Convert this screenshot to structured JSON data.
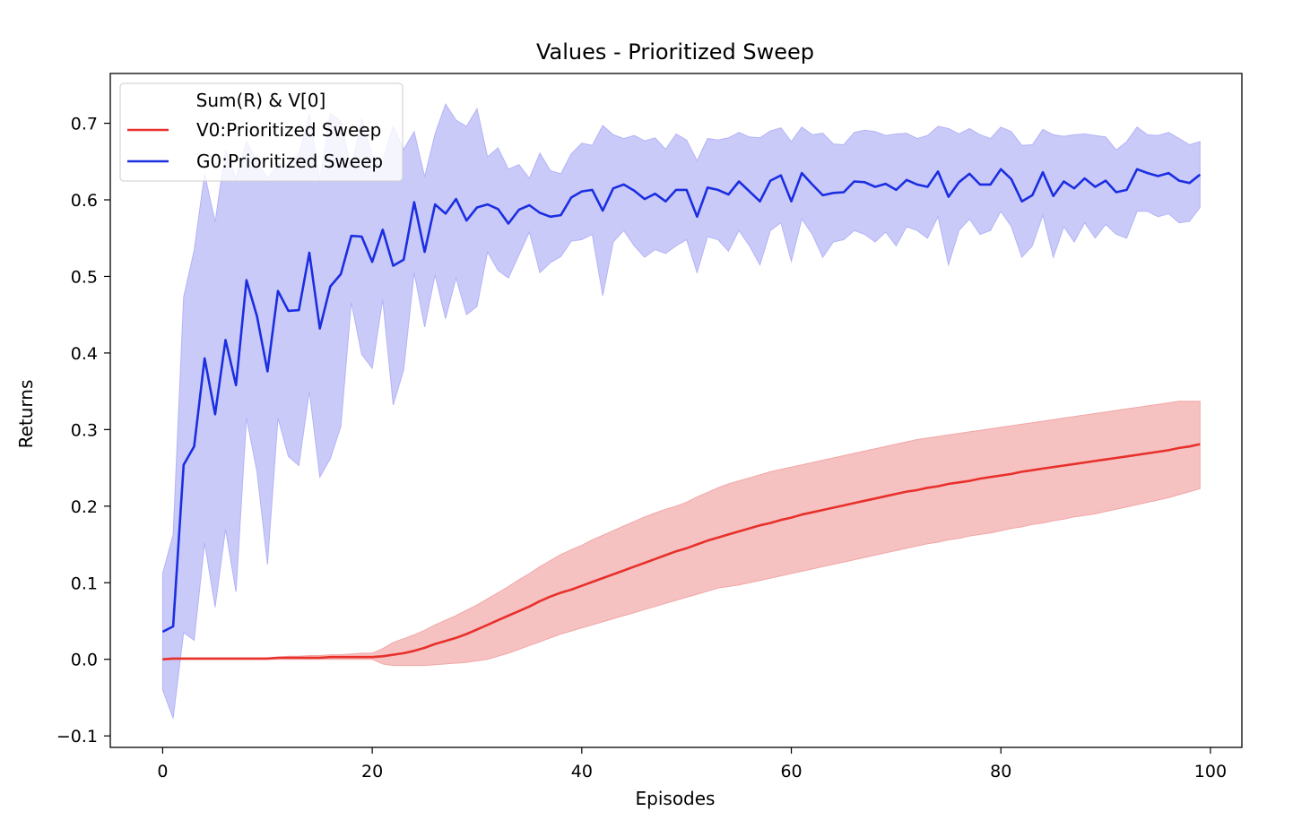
{
  "chart_data": {
    "type": "line",
    "title": "Values - Prioritized Sweep",
    "xlabel": "Episodes",
    "ylabel": "Returns",
    "xlim": [
      -5,
      103
    ],
    "ylim": [
      -0.115,
      0.765
    ],
    "xticks": [
      0,
      20,
      40,
      60,
      80,
      100
    ],
    "yticks": [
      -0.1,
      0.0,
      0.1,
      0.2,
      0.3,
      0.4,
      0.5,
      0.6,
      0.7
    ],
    "grid": false,
    "legend": {
      "title": "Sum(R) & V[0]",
      "placement": "top-left"
    },
    "series": [
      {
        "name": "V0:Prioritized Sweep",
        "color": "#e8302b",
        "band_color": "#f2a7a7",
        "x": [
          0,
          1,
          2,
          3,
          4,
          5,
          6,
          7,
          8,
          9,
          10,
          11,
          12,
          13,
          14,
          15,
          16,
          17,
          18,
          19,
          20,
          21,
          22,
          23,
          24,
          25,
          26,
          27,
          28,
          29,
          30,
          31,
          32,
          33,
          34,
          35,
          36,
          37,
          38,
          39,
          40,
          41,
          42,
          43,
          44,
          45,
          46,
          47,
          48,
          49,
          50,
          51,
          52,
          53,
          54,
          55,
          56,
          57,
          58,
          59,
          60,
          61,
          62,
          63,
          64,
          65,
          66,
          67,
          68,
          69,
          70,
          71,
          72,
          73,
          74,
          75,
          76,
          77,
          78,
          79,
          80,
          81,
          82,
          83,
          84,
          85,
          86,
          87,
          88,
          89,
          90,
          91,
          92,
          93,
          94,
          95,
          96,
          97,
          98,
          99
        ],
        "values": [
          0.0,
          0.001,
          0.001,
          0.001,
          0.001,
          0.001,
          0.001,
          0.001,
          0.001,
          0.001,
          0.001,
          0.002,
          0.002,
          0.002,
          0.002,
          0.002,
          0.003,
          0.003,
          0.003,
          0.003,
          0.003,
          0.004,
          0.006,
          0.008,
          0.011,
          0.015,
          0.02,
          0.024,
          0.028,
          0.033,
          0.039,
          0.045,
          0.051,
          0.057,
          0.063,
          0.069,
          0.076,
          0.082,
          0.087,
          0.091,
          0.096,
          0.101,
          0.106,
          0.111,
          0.116,
          0.121,
          0.126,
          0.131,
          0.136,
          0.141,
          0.145,
          0.15,
          0.155,
          0.159,
          0.163,
          0.167,
          0.171,
          0.175,
          0.178,
          0.182,
          0.185,
          0.189,
          0.192,
          0.195,
          0.198,
          0.201,
          0.204,
          0.207,
          0.21,
          0.213,
          0.216,
          0.219,
          0.221,
          0.224,
          0.226,
          0.229,
          0.231,
          0.233,
          0.236,
          0.238,
          0.24,
          0.242,
          0.245,
          0.247,
          0.249,
          0.251,
          0.253,
          0.255,
          0.257,
          0.259,
          0.261,
          0.263,
          0.265,
          0.267,
          0.269,
          0.271,
          0.273,
          0.276,
          0.278,
          0.281
        ],
        "lower": [
          0.0,
          0.0,
          0.0,
          0.0,
          0.0,
          0.0,
          0.0,
          0.0,
          0.0,
          0.0,
          0.0,
          0.0,
          0.0,
          0.0,
          0.0,
          0.0,
          0.0,
          0.0,
          0.0,
          0.0,
          0.0,
          -0.006,
          -0.008,
          -0.008,
          -0.008,
          -0.008,
          -0.007,
          -0.006,
          -0.005,
          -0.004,
          -0.002,
          0.0,
          0.004,
          0.008,
          0.013,
          0.018,
          0.023,
          0.028,
          0.033,
          0.037,
          0.041,
          0.045,
          0.049,
          0.053,
          0.057,
          0.061,
          0.065,
          0.069,
          0.073,
          0.077,
          0.081,
          0.085,
          0.089,
          0.093,
          0.095,
          0.097,
          0.1,
          0.103,
          0.106,
          0.109,
          0.112,
          0.115,
          0.118,
          0.121,
          0.124,
          0.127,
          0.13,
          0.133,
          0.136,
          0.139,
          0.142,
          0.145,
          0.148,
          0.151,
          0.153,
          0.156,
          0.158,
          0.161,
          0.163,
          0.165,
          0.168,
          0.171,
          0.173,
          0.176,
          0.178,
          0.181,
          0.183,
          0.186,
          0.188,
          0.19,
          0.193,
          0.196,
          0.199,
          0.202,
          0.205,
          0.208,
          0.211,
          0.215,
          0.219,
          0.223
        ],
        "upper": [
          0.001,
          0.001,
          0.001,
          0.001,
          0.001,
          0.001,
          0.001,
          0.001,
          0.001,
          0.001,
          0.002,
          0.003,
          0.004,
          0.004,
          0.005,
          0.005,
          0.006,
          0.006,
          0.007,
          0.008,
          0.008,
          0.014,
          0.022,
          0.027,
          0.032,
          0.038,
          0.045,
          0.051,
          0.057,
          0.064,
          0.071,
          0.079,
          0.087,
          0.095,
          0.104,
          0.112,
          0.121,
          0.129,
          0.137,
          0.143,
          0.149,
          0.156,
          0.162,
          0.168,
          0.174,
          0.18,
          0.186,
          0.191,
          0.196,
          0.2,
          0.205,
          0.212,
          0.218,
          0.224,
          0.229,
          0.233,
          0.237,
          0.241,
          0.245,
          0.248,
          0.251,
          0.254,
          0.257,
          0.26,
          0.263,
          0.266,
          0.269,
          0.272,
          0.275,
          0.278,
          0.281,
          0.284,
          0.287,
          0.289,
          0.291,
          0.293,
          0.295,
          0.297,
          0.299,
          0.301,
          0.303,
          0.305,
          0.307,
          0.309,
          0.311,
          0.313,
          0.315,
          0.317,
          0.319,
          0.321,
          0.323,
          0.325,
          0.327,
          0.329,
          0.331,
          0.333,
          0.335,
          0.337,
          0.337,
          0.337
        ]
      },
      {
        "name": "G0:Prioritized Sweep",
        "color": "#1b2ee0",
        "band_color": "#b3b3f7",
        "x": [
          0,
          1,
          2,
          3,
          4,
          5,
          6,
          7,
          8,
          9,
          10,
          11,
          12,
          13,
          14,
          15,
          16,
          17,
          18,
          19,
          20,
          21,
          22,
          23,
          24,
          25,
          26,
          27,
          28,
          29,
          30,
          31,
          32,
          33,
          34,
          35,
          36,
          37,
          38,
          39,
          40,
          41,
          42,
          43,
          44,
          45,
          46,
          47,
          48,
          49,
          50,
          51,
          52,
          53,
          54,
          55,
          56,
          57,
          58,
          59,
          60,
          61,
          62,
          63,
          64,
          65,
          66,
          67,
          68,
          69,
          70,
          71,
          72,
          73,
          74,
          75,
          76,
          77,
          78,
          79,
          80,
          81,
          82,
          83,
          84,
          85,
          86,
          87,
          88,
          89,
          90,
          91,
          92,
          93,
          94,
          95,
          96,
          97,
          98,
          99
        ],
        "values": [
          0.036,
          0.043,
          0.254,
          0.278,
          0.393,
          0.32,
          0.417,
          0.358,
          0.495,
          0.448,
          0.376,
          0.481,
          0.455,
          0.456,
          0.531,
          0.432,
          0.487,
          0.503,
          0.553,
          0.552,
          0.519,
          0.561,
          0.514,
          0.522,
          0.597,
          0.532,
          0.594,
          0.582,
          0.601,
          0.573,
          0.59,
          0.594,
          0.588,
          0.569,
          0.587,
          0.593,
          0.583,
          0.578,
          0.58,
          0.603,
          0.611,
          0.613,
          0.586,
          0.615,
          0.62,
          0.612,
          0.601,
          0.608,
          0.598,
          0.613,
          0.613,
          0.578,
          0.616,
          0.613,
          0.607,
          0.624,
          0.611,
          0.598,
          0.625,
          0.632,
          0.598,
          0.635,
          0.62,
          0.606,
          0.609,
          0.61,
          0.624,
          0.623,
          0.617,
          0.621,
          0.613,
          0.626,
          0.62,
          0.617,
          0.637,
          0.604,
          0.623,
          0.634,
          0.62,
          0.62,
          0.64,
          0.627,
          0.598,
          0.606,
          0.636,
          0.605,
          0.624,
          0.615,
          0.628,
          0.617,
          0.625,
          0.61,
          0.613,
          0.64,
          0.635,
          0.631,
          0.635,
          0.625,
          0.622,
          0.633
        ],
        "lower": [
          -0.04,
          -0.077,
          0.035,
          0.025,
          0.152,
          0.068,
          0.17,
          0.088,
          0.315,
          0.245,
          0.124,
          0.315,
          0.265,
          0.253,
          0.35,
          0.238,
          0.262,
          0.304,
          0.466,
          0.398,
          0.38,
          0.47,
          0.332,
          0.378,
          0.505,
          0.434,
          0.502,
          0.445,
          0.498,
          0.45,
          0.461,
          0.532,
          0.508,
          0.498,
          0.528,
          0.558,
          0.505,
          0.518,
          0.526,
          0.546,
          0.548,
          0.555,
          0.475,
          0.545,
          0.56,
          0.54,
          0.525,
          0.535,
          0.53,
          0.54,
          0.548,
          0.505,
          0.552,
          0.548,
          0.533,
          0.56,
          0.54,
          0.515,
          0.56,
          0.57,
          0.52,
          0.575,
          0.555,
          0.525,
          0.545,
          0.548,
          0.56,
          0.555,
          0.545,
          0.558,
          0.54,
          0.565,
          0.56,
          0.55,
          0.578,
          0.515,
          0.56,
          0.575,
          0.555,
          0.56,
          0.585,
          0.565,
          0.525,
          0.54,
          0.58,
          0.525,
          0.565,
          0.545,
          0.57,
          0.55,
          0.568,
          0.555,
          0.55,
          0.585,
          0.585,
          0.578,
          0.582,
          0.57,
          0.572,
          0.59
        ],
        "upper": [
          0.112,
          0.163,
          0.473,
          0.534,
          0.634,
          0.571,
          0.665,
          0.628,
          0.676,
          0.651,
          0.628,
          0.648,
          0.645,
          0.659,
          0.713,
          0.626,
          0.713,
          0.702,
          0.641,
          0.706,
          0.658,
          0.652,
          0.696,
          0.666,
          0.689,
          0.63,
          0.686,
          0.725,
          0.704,
          0.696,
          0.719,
          0.656,
          0.668,
          0.64,
          0.646,
          0.628,
          0.661,
          0.638,
          0.634,
          0.66,
          0.674,
          0.671,
          0.697,
          0.685,
          0.68,
          0.684,
          0.677,
          0.681,
          0.666,
          0.686,
          0.678,
          0.651,
          0.68,
          0.678,
          0.681,
          0.688,
          0.682,
          0.681,
          0.69,
          0.694,
          0.676,
          0.695,
          0.685,
          0.687,
          0.673,
          0.672,
          0.688,
          0.691,
          0.689,
          0.684,
          0.686,
          0.687,
          0.68,
          0.684,
          0.696,
          0.693,
          0.686,
          0.693,
          0.685,
          0.68,
          0.695,
          0.689,
          0.671,
          0.672,
          0.692,
          0.685,
          0.683,
          0.685,
          0.686,
          0.684,
          0.682,
          0.665,
          0.676,
          0.695,
          0.685,
          0.684,
          0.688,
          0.68,
          0.672,
          0.676
        ]
      }
    ]
  }
}
